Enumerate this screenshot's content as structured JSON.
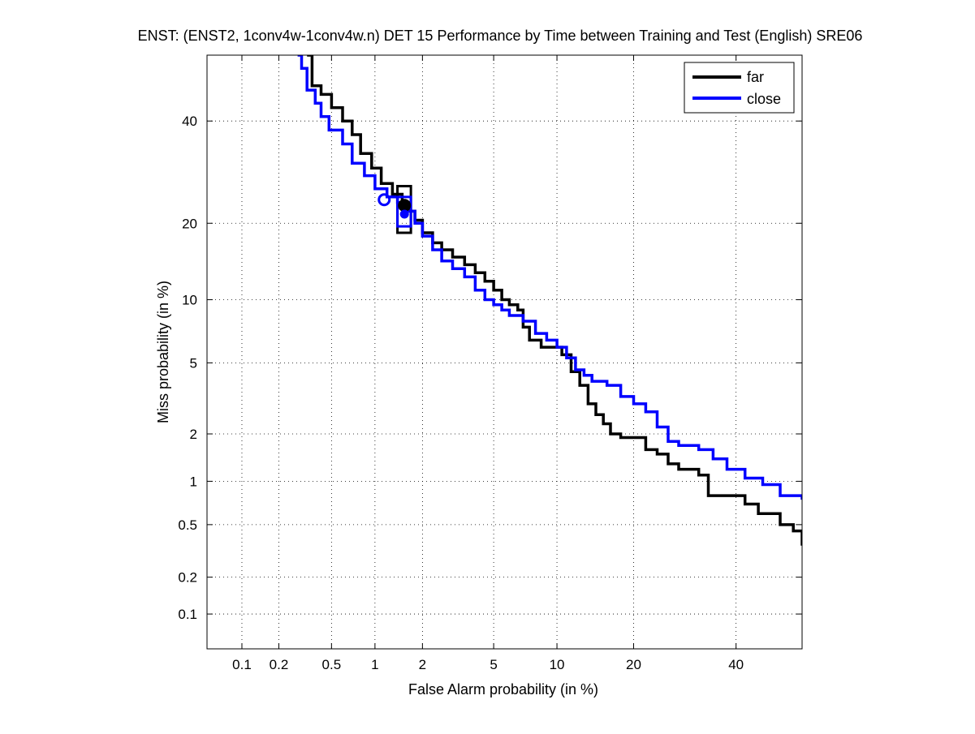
{
  "chart_data": {
    "type": "line",
    "title": "ENST: (ENST2, 1conv4w-1conv4w.n) DET 15 Performance by Time between Training and Test (English) SRE06",
    "xlabel": "False Alarm probability (in %)",
    "ylabel": "Miss probability (in %)",
    "x_scale": "probit",
    "y_scale": "probit",
    "xlim": [
      0.05,
      55
    ],
    "ylim": [
      0.05,
      55
    ],
    "x_ticks": [
      0.1,
      0.2,
      0.5,
      1,
      2,
      5,
      10,
      20,
      40
    ],
    "x_tick_labels": [
      "0.1",
      "0.2",
      "0.5",
      "1",
      "2",
      "5",
      "10",
      "20",
      "40"
    ],
    "y_ticks": [
      0.1,
      0.2,
      0.5,
      1,
      2,
      5,
      10,
      20,
      40
    ],
    "y_tick_labels": [
      "0.1",
      "0.2",
      "0.5",
      "1",
      "2",
      "5",
      "10",
      "20",
      "40"
    ],
    "grid": true,
    "legend_position": "top-right",
    "series": [
      {
        "name": "far",
        "color": "#000000",
        "points": [
          [
            0.33,
            55
          ],
          [
            0.36,
            48
          ],
          [
            0.42,
            46
          ],
          [
            0.5,
            43
          ],
          [
            0.6,
            40
          ],
          [
            0.7,
            37
          ],
          [
            0.8,
            33
          ],
          [
            0.95,
            30
          ],
          [
            1.1,
            27
          ],
          [
            1.3,
            25
          ],
          [
            1.5,
            23.5
          ],
          [
            1.65,
            22
          ],
          [
            1.8,
            20.5
          ],
          [
            2.0,
            18.5
          ],
          [
            2.3,
            17
          ],
          [
            2.6,
            16
          ],
          [
            3.0,
            15
          ],
          [
            3.5,
            14
          ],
          [
            4.0,
            13
          ],
          [
            4.5,
            12
          ],
          [
            5.0,
            11
          ],
          [
            5.5,
            10
          ],
          [
            6.0,
            9.5
          ],
          [
            6.6,
            9
          ],
          [
            7.0,
            7.5
          ],
          [
            7.5,
            6.5
          ],
          [
            8.5,
            6
          ],
          [
            9.5,
            6
          ],
          [
            10.5,
            5.5
          ],
          [
            11.5,
            4.5
          ],
          [
            12.5,
            3.8
          ],
          [
            13.5,
            3.0
          ],
          [
            14.5,
            2.6
          ],
          [
            15.5,
            2.3
          ],
          [
            16.5,
            2.0
          ],
          [
            18,
            1.9
          ],
          [
            20,
            1.9
          ],
          [
            22,
            1.6
          ],
          [
            24,
            1.5
          ],
          [
            26,
            1.3
          ],
          [
            28,
            1.2
          ],
          [
            30,
            1.2
          ],
          [
            32,
            1.1
          ],
          [
            34,
            0.8
          ],
          [
            38,
            0.8
          ],
          [
            42,
            0.7
          ],
          [
            45,
            0.6
          ],
          [
            50,
            0.5
          ],
          [
            53,
            0.45
          ],
          [
            55,
            0.35
          ]
        ],
        "min_dcf_point": [
          1.55,
          23.0
        ],
        "act_dcf_point": [
          1.55,
          23.0
        ]
      },
      {
        "name": "close",
        "color": "#0000ff",
        "points": [
          [
            0.28,
            55
          ],
          [
            0.3,
            52
          ],
          [
            0.33,
            47
          ],
          [
            0.38,
            44
          ],
          [
            0.42,
            41
          ],
          [
            0.48,
            38
          ],
          [
            0.6,
            35
          ],
          [
            0.7,
            31
          ],
          [
            0.85,
            28.5
          ],
          [
            1.0,
            26
          ],
          [
            1.2,
            24.5
          ],
          [
            1.4,
            23.5
          ],
          [
            1.6,
            22
          ],
          [
            1.8,
            20
          ],
          [
            2.0,
            18
          ],
          [
            2.3,
            16
          ],
          [
            2.6,
            14.5
          ],
          [
            3.0,
            13.5
          ],
          [
            3.5,
            12.5
          ],
          [
            4.0,
            11
          ],
          [
            4.5,
            10
          ],
          [
            5.0,
            9.5
          ],
          [
            5.5,
            9
          ],
          [
            6.0,
            8.5
          ],
          [
            7.0,
            8
          ],
          [
            8.0,
            7
          ],
          [
            9.0,
            6.5
          ],
          [
            10.0,
            6
          ],
          [
            11.0,
            5.3
          ],
          [
            12.0,
            4.6
          ],
          [
            13.0,
            4.3
          ],
          [
            14.0,
            4.0
          ],
          [
            16.0,
            3.8
          ],
          [
            18.0,
            3.3
          ],
          [
            20.0,
            3.0
          ],
          [
            22.0,
            2.7
          ],
          [
            24.0,
            2.2
          ],
          [
            26.0,
            1.8
          ],
          [
            28.0,
            1.7
          ],
          [
            32.0,
            1.6
          ],
          [
            35.0,
            1.4
          ],
          [
            38.0,
            1.2
          ],
          [
            42.0,
            1.05
          ],
          [
            46.0,
            0.95
          ],
          [
            50.0,
            0.8
          ],
          [
            55.0,
            0.75
          ]
        ],
        "min_dcf_point": [
          1.15,
          24.0
        ],
        "act_dcf_point": [
          1.55,
          21.5
        ]
      }
    ],
    "confidence_box": {
      "x_range": [
        1.4,
        1.7
      ],
      "y_range": [
        18.5,
        26.5
      ]
    }
  }
}
